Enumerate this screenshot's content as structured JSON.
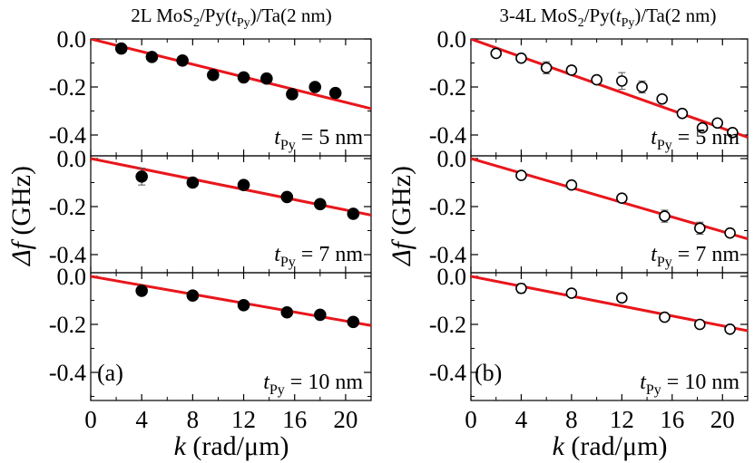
{
  "panels": [
    {
      "title": "2L MoS₂/Py(t_Py)/Ta(2 nm)",
      "title_parts": {
        "pre": "2L MoS",
        "sub1": "2",
        "mid": "/Py(",
        "it": "t",
        "sub2": "Py",
        "post": ")/Ta(2 nm)"
      },
      "panel_label": "(a)",
      "marker": "filled"
    },
    {
      "title": "3-4L MoS₂/Py(t_Py)/Ta(2 nm)",
      "title_parts": {
        "pre": "3-4L MoS",
        "sub1": "2",
        "mid": "/Py(",
        "it": "t",
        "sub2": "Py",
        "post": ")/Ta(2 nm)"
      },
      "panel_label": "(b)",
      "marker": "open"
    }
  ],
  "axes": {
    "xlabel_var": "k",
    "xlabel_unit": " (rad/μm)",
    "ylabel_var": "Δf",
    "ylabel_unit": " (GHz)",
    "x_ticks": [
      "0",
      "4",
      "8",
      "12",
      "16",
      "20"
    ],
    "y_ticks": [
      "0.0",
      "-0.2",
      "-0.4"
    ]
  },
  "colors": {
    "fit_line": "#e8161b",
    "marker": "#000000",
    "axis": "#000000"
  },
  "chart_data": [
    {
      "type": "scatter",
      "panel": "(a)",
      "title": "2L MoS2/Py(tPy)/Ta(2 nm)",
      "xlabel": "k (rad/μm)",
      "ylabel": "Δf (GHz)",
      "xlim": [
        0,
        22
      ],
      "subplots": [
        {
          "label_var": "t",
          "label_sub": "Py",
          "label_text": " = 5 nm",
          "ylim": [
            -0.45,
            0.0
          ],
          "points": [
            {
              "x": 2.4,
              "y": -0.04,
              "err": 0
            },
            {
              "x": 4.8,
              "y": -0.075,
              "err": 0
            },
            {
              "x": 7.2,
              "y": -0.09,
              "err": 0
            },
            {
              "x": 9.6,
              "y": -0.15,
              "err": 0
            },
            {
              "x": 12.0,
              "y": -0.16,
              "err": 0
            },
            {
              "x": 13.8,
              "y": -0.165,
              "err": 0
            },
            {
              "x": 15.8,
              "y": -0.23,
              "err": 0
            },
            {
              "x": 17.6,
              "y": -0.2,
              "err": 0
            },
            {
              "x": 19.2,
              "y": -0.225,
              "err": 0.02
            }
          ],
          "fit": {
            "slope": -0.0132,
            "intercept": 0.0
          }
        },
        {
          "label_var": "t",
          "label_sub": "Py",
          "label_text": " = 7 nm",
          "ylim": [
            -0.45,
            0.0
          ],
          "points": [
            {
              "x": 4.0,
              "y": -0.075,
              "err": 0.035
            },
            {
              "x": 8.0,
              "y": -0.1,
              "err": 0
            },
            {
              "x": 12.0,
              "y": -0.11,
              "err": 0
            },
            {
              "x": 15.4,
              "y": -0.16,
              "err": 0
            },
            {
              "x": 18.0,
              "y": -0.19,
              "err": 0
            },
            {
              "x": 20.6,
              "y": -0.23,
              "err": 0
            }
          ],
          "fit": {
            "slope": -0.0107,
            "intercept": 0.0
          }
        },
        {
          "label_var": "t",
          "label_sub": "Py",
          "label_text": " = 10 nm",
          "ylim": [
            -0.45,
            0.0
          ],
          "points": [
            {
              "x": 4.0,
              "y": -0.06,
              "err": 0
            },
            {
              "x": 8.0,
              "y": -0.08,
              "err": 0
            },
            {
              "x": 12.0,
              "y": -0.12,
              "err": 0
            },
            {
              "x": 15.4,
              "y": -0.15,
              "err": 0
            },
            {
              "x": 18.0,
              "y": -0.16,
              "err": 0
            },
            {
              "x": 20.6,
              "y": -0.19,
              "err": 0
            }
          ],
          "fit": {
            "slope": -0.0093,
            "intercept": 0.0
          }
        }
      ]
    },
    {
      "type": "scatter",
      "panel": "(b)",
      "title": "3-4L MoS2/Py(tPy)/Ta(2 nm)",
      "xlabel": "k (rad/μm)",
      "ylabel": "Δf (GHz)",
      "xlim": [
        0,
        22
      ],
      "subplots": [
        {
          "label_var": "t",
          "label_sub": "Py",
          "label_text": " = 5 nm",
          "ylim": [
            -0.45,
            0.0
          ],
          "points": [
            {
              "x": 2.0,
              "y": -0.06,
              "err": 0
            },
            {
              "x": 4.0,
              "y": -0.08,
              "err": 0
            },
            {
              "x": 6.0,
              "y": -0.12,
              "err": 0.025
            },
            {
              "x": 8.0,
              "y": -0.13,
              "err": 0
            },
            {
              "x": 10.0,
              "y": -0.17,
              "err": 0
            },
            {
              "x": 12.0,
              "y": -0.175,
              "err": 0.035
            },
            {
              "x": 13.6,
              "y": -0.2,
              "err": 0.025
            },
            {
              "x": 15.2,
              "y": -0.25,
              "err": 0
            },
            {
              "x": 16.8,
              "y": -0.31,
              "err": 0
            },
            {
              "x": 18.4,
              "y": -0.37,
              "err": 0
            },
            {
              "x": 19.6,
              "y": -0.35,
              "err": 0
            },
            {
              "x": 20.8,
              "y": -0.39,
              "err": 0
            }
          ],
          "fit": {
            "slope": -0.0186,
            "intercept": 0.0
          }
        },
        {
          "label_var": "t",
          "label_sub": "Py",
          "label_text": " = 7 nm",
          "ylim": [
            -0.45,
            0.0
          ],
          "points": [
            {
              "x": 4.0,
              "y": -0.07,
              "err": 0
            },
            {
              "x": 8.0,
              "y": -0.11,
              "err": 0
            },
            {
              "x": 12.0,
              "y": -0.165,
              "err": 0
            },
            {
              "x": 15.4,
              "y": -0.24,
              "err": 0.025
            },
            {
              "x": 18.2,
              "y": -0.29,
              "err": 0.025
            },
            {
              "x": 20.6,
              "y": -0.31,
              "err": 0
            }
          ],
          "fit": {
            "slope": -0.0152,
            "intercept": 0.0
          }
        },
        {
          "label_var": "t",
          "label_sub": "Py",
          "label_text": " = 10 nm",
          "ylim": [
            -0.45,
            0.0
          ],
          "points": [
            {
              "x": 4.0,
              "y": -0.05,
              "err": 0.02
            },
            {
              "x": 8.0,
              "y": -0.07,
              "err": 0
            },
            {
              "x": 12.0,
              "y": -0.09,
              "err": 0
            },
            {
              "x": 15.4,
              "y": -0.17,
              "err": 0
            },
            {
              "x": 18.2,
              "y": -0.2,
              "err": 0
            },
            {
              "x": 20.6,
              "y": -0.22,
              "err": 0
            }
          ],
          "fit": {
            "slope": -0.0103,
            "intercept": 0.0
          }
        }
      ]
    }
  ]
}
